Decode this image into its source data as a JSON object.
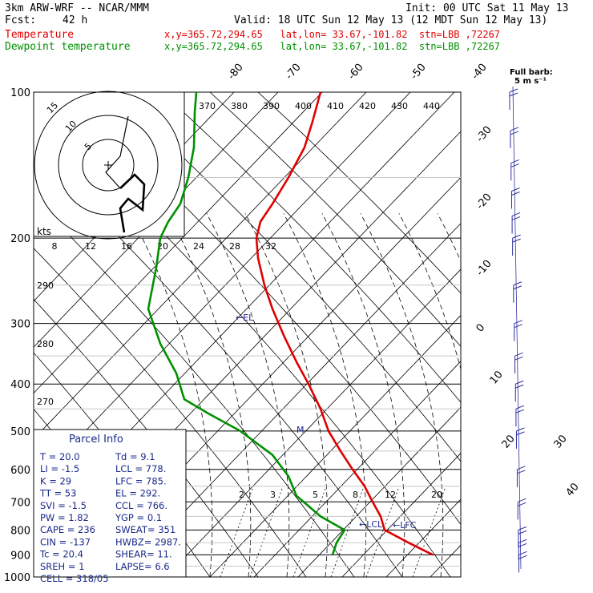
{
  "header": {
    "model": "3km ARW-WRF -- NCAR/MMM",
    "init": "Init: 00 UTC Sat 11 May 13",
    "fcst_label": "Fcst:",
    "fcst_value": "42 h",
    "valid": "Valid: 18 UTC Sun 12 May 13 (12 MDT Sun 12 May 13)",
    "temp_label": "Temperature",
    "temp_loc": "x,y=365.72,294.65   lat,lon= 33.67,-101.82  stn=LBB ,72267",
    "dew_label": "Dewpoint temperature",
    "dew_loc": "x,y=365.72,294.65   lat,lon= 33.67,-101.82  stn=LBB ,72267"
  },
  "barb_label": {
    "line1": "Full barb:",
    "line2": "5 m s⁻¹"
  },
  "parcel_info": {
    "title": "Parcel Info",
    "rows": [
      {
        "a": "T  =    20.0",
        "b": "Td  =    9.1"
      },
      {
        "a": "LI =    -1.5",
        "b": "LCL =  778."
      },
      {
        "a": "K  =      29",
        "b": "LFC =  785."
      },
      {
        "a": "TT =      53",
        "b": "EL  =  292."
      },
      {
        "a": "SVI =   -1.5",
        "b": "CCL =  766."
      },
      {
        "a": "PW =    1.82",
        "b": "YGP =    0.1"
      },
      {
        "a": "CAPE =   236",
        "b": "SWEAT=   351"
      },
      {
        "a": "CIN =   -137",
        "b": "HWBZ= 2987."
      },
      {
        "a": "Tc =    20.4",
        "b": "SHEAR=   11."
      },
      {
        "a": "SREH =     1",
        "b": "LAPSE=   6.6"
      },
      {
        "a": "CELL = 318/05",
        "b": ""
      }
    ]
  },
  "hodograph": {
    "units": "kts",
    "ring_labels": [
      "5",
      "10",
      "15"
    ]
  },
  "labels": {
    "el": "←EL",
    "lcl": "←LCL",
    "lfc": "←LFC",
    "m": "M"
  },
  "chart_data": {
    "type": "line",
    "title": "",
    "xlabel": "",
    "ylabel": "",
    "pressure_ticks": [
      100,
      200,
      300,
      400,
      500,
      600,
      700,
      800,
      900,
      1000
    ],
    "isotherm_labels": [
      "-80",
      "-70",
      "-60",
      "-50",
      "-40",
      "-30",
      "-20",
      "-10",
      "0",
      "10",
      "20",
      "30",
      "40"
    ],
    "theta_labels": [
      "370",
      "380",
      "390",
      "400",
      "410",
      "420",
      "430",
      "440"
    ],
    "theta_left_labels": [
      "290",
      "280",
      "270"
    ],
    "mixing_ratio_labels": [
      "2",
      "3",
      "5",
      "8",
      "12",
      "20"
    ],
    "hodo_speed_labels": [
      "8",
      "12",
      "16",
      "20",
      "24",
      "28",
      "32"
    ],
    "series": [
      {
        "name": "Temperature",
        "color": "#e00000",
        "points": [
          [
            100,
            400
          ],
          [
            115,
            390
          ],
          [
            130,
            380
          ],
          [
            150,
            360
          ],
          [
            170,
            340
          ],
          [
            185,
            325
          ],
          [
            200,
            320
          ],
          [
            220,
            322
          ],
          [
            250,
            330
          ],
          [
            280,
            340
          ],
          [
            320,
            355
          ],
          [
            360,
            370
          ],
          [
            400,
            385
          ],
          [
            450,
            400
          ],
          [
            500,
            410
          ],
          [
            550,
            425
          ],
          [
            600,
            440
          ],
          [
            650,
            455
          ],
          [
            700,
            465
          ],
          [
            750,
            475
          ],
          [
            800,
            480
          ],
          [
            850,
            510
          ],
          [
            900,
            540
          ]
        ]
      },
      {
        "name": "Dewpoint temperature",
        "color": "#009000",
        "points": [
          [
            100,
            245
          ],
          [
            110,
            243
          ],
          [
            130,
            242
          ],
          [
            150,
            235
          ],
          [
            170,
            225
          ],
          [
            185,
            210
          ],
          [
            200,
            200
          ],
          [
            230,
            195
          ],
          [
            280,
            185
          ],
          [
            330,
            200
          ],
          [
            380,
            220
          ],
          [
            430,
            230
          ],
          [
            460,
            260
          ],
          [
            500,
            300
          ],
          [
            560,
            340
          ],
          [
            620,
            360
          ],
          [
            680,
            370
          ],
          [
            750,
            400
          ],
          [
            800,
            430
          ],
          [
            850,
            420
          ],
          [
            900,
            415
          ]
        ]
      }
    ],
    "wind_barbs_pressure": [
      100,
      120,
      140,
      160,
      180,
      200,
      250,
      300,
      350,
      400,
      450,
      500,
      600,
      700,
      800,
      850,
      900
    ]
  }
}
